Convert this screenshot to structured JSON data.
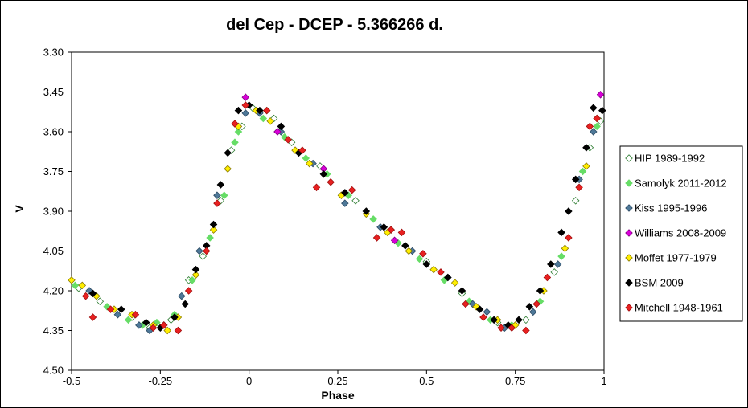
{
  "chart_data": {
    "type": "scatter",
    "title": "del Cep - DCEP - 5.366266 d.",
    "xlabel": "Phase",
    "ylabel": "V",
    "xlim": [
      -0.5,
      1.0
    ],
    "ylim": [
      4.5,
      3.3
    ],
    "y_inverted": true,
    "x_ticks": [
      "-0.5",
      "-0.25",
      "0",
      "0.25",
      "0.5",
      "0.75",
      "1"
    ],
    "y_ticks": [
      "3.30",
      "3.45",
      "3.60",
      "3.75",
      "3.90",
      "4.05",
      "4.20",
      "4.35",
      "4.50"
    ],
    "grid": false,
    "legend_position": "right",
    "series": [
      {
        "name": "HIP 1989-1992",
        "color": "#ffffff",
        "stroke": "#2e7d32",
        "points": [
          [
            -0.48,
            4.19
          ],
          [
            -0.42,
            4.24
          ],
          [
            -0.33,
            4.3
          ],
          [
            -0.28,
            4.34
          ],
          [
            -0.22,
            4.31
          ],
          [
            -0.17,
            4.16
          ],
          [
            -0.13,
            4.07
          ],
          [
            -0.08,
            3.86
          ],
          [
            -0.05,
            3.67
          ],
          [
            -0.02,
            3.58
          ],
          [
            0.01,
            3.51
          ],
          [
            0.05,
            3.52
          ],
          [
            0.07,
            3.55
          ],
          [
            0.12,
            3.64
          ],
          [
            0.2,
            3.73
          ],
          [
            0.3,
            3.86
          ],
          [
            0.4,
            3.97
          ],
          [
            0.5,
            4.09
          ],
          [
            0.6,
            4.21
          ],
          [
            0.7,
            4.32
          ],
          [
            0.78,
            4.31
          ],
          [
            0.86,
            4.13
          ],
          [
            0.92,
            3.86
          ],
          [
            0.96,
            3.66
          ],
          [
            0.99,
            3.56
          ]
        ]
      },
      {
        "name": "Samolyk 2011-2012",
        "color": "#66dd66",
        "stroke": "#66dd66",
        "points": [
          [
            -0.49,
            4.18
          ],
          [
            -0.4,
            4.26
          ],
          [
            -0.34,
            4.31
          ],
          [
            -0.3,
            4.33
          ],
          [
            -0.26,
            4.32
          ],
          [
            -0.21,
            4.29
          ],
          [
            -0.16,
            4.16
          ],
          [
            -0.11,
            4.0
          ],
          [
            -0.07,
            3.84
          ],
          [
            -0.04,
            3.64
          ],
          [
            -0.03,
            3.6
          ],
          [
            0.04,
            3.55
          ],
          [
            0.1,
            3.62
          ],
          [
            0.16,
            3.7
          ],
          [
            0.22,
            3.76
          ],
          [
            0.28,
            3.84
          ],
          [
            0.35,
            3.93
          ],
          [
            0.42,
            4.02
          ],
          [
            0.48,
            4.08
          ],
          [
            0.55,
            4.16
          ],
          [
            0.62,
            4.24
          ],
          [
            0.68,
            4.31
          ],
          [
            0.74,
            4.33
          ],
          [
            0.82,
            4.24
          ],
          [
            0.88,
            4.07
          ],
          [
            0.94,
            3.75
          ],
          [
            0.98,
            3.58
          ]
        ]
      },
      {
        "name": "Kiss 1995-1996",
        "color": "#4e7898",
        "stroke": "#2c4a63",
        "points": [
          [
            -0.45,
            4.2
          ],
          [
            -0.37,
            4.29
          ],
          [
            -0.31,
            4.33
          ],
          [
            -0.28,
            4.35
          ],
          [
            -0.24,
            4.33
          ],
          [
            -0.19,
            4.22
          ],
          [
            -0.14,
            4.05
          ],
          [
            -0.09,
            3.84
          ],
          [
            -0.01,
            3.53
          ],
          [
            0.03,
            3.53
          ],
          [
            0.09,
            3.6
          ],
          [
            0.18,
            3.72
          ],
          [
            0.27,
            3.87
          ],
          [
            0.37,
            3.96
          ],
          [
            0.46,
            4.05
          ],
          [
            0.56,
            4.15
          ],
          [
            0.63,
            4.25
          ],
          [
            0.67,
            4.28
          ],
          [
            0.72,
            4.34
          ],
          [
            0.8,
            4.28
          ],
          [
            0.87,
            4.1
          ],
          [
            0.93,
            3.78
          ],
          [
            0.97,
            3.6
          ]
        ]
      },
      {
        "name": "Williams 2008-2009",
        "color": "#d800d8",
        "stroke": "#800080",
        "points": [
          [
            -0.01,
            3.47
          ],
          [
            0.08,
            3.6
          ],
          [
            0.21,
            3.74
          ],
          [
            0.41,
            4.01
          ],
          [
            0.99,
            3.46
          ]
        ]
      },
      {
        "name": "Moffet 1977-1979",
        "color": "#ffee00",
        "stroke": "#8a7a00",
        "points": [
          [
            -0.5,
            4.16
          ],
          [
            -0.47,
            4.18
          ],
          [
            -0.43,
            4.22
          ],
          [
            -0.38,
            4.27
          ],
          [
            -0.33,
            4.29
          ],
          [
            -0.27,
            4.33
          ],
          [
            -0.23,
            4.35
          ],
          [
            -0.2,
            4.3
          ],
          [
            -0.15,
            4.14
          ],
          [
            -0.1,
            3.97
          ],
          [
            -0.06,
            3.74
          ],
          [
            -0.03,
            3.58
          ],
          [
            0.02,
            3.52
          ],
          [
            0.06,
            3.56
          ],
          [
            0.13,
            3.67
          ],
          [
            0.17,
            3.72
          ],
          [
            0.26,
            3.84
          ],
          [
            0.33,
            3.91
          ],
          [
            0.39,
            3.98
          ],
          [
            0.45,
            4.05
          ],
          [
            0.52,
            4.12
          ],
          [
            0.58,
            4.17
          ],
          [
            0.64,
            4.26
          ],
          [
            0.7,
            4.31
          ],
          [
            0.75,
            4.33
          ],
          [
            0.83,
            4.2
          ],
          [
            0.89,
            4.04
          ],
          [
            0.95,
            3.73
          ],
          [
            0.98,
            3.55
          ]
        ]
      },
      {
        "name": "BSM 2009",
        "color": "#000000",
        "stroke": "#000000",
        "points": [
          [
            -0.44,
            4.21
          ],
          [
            -0.36,
            4.27
          ],
          [
            -0.29,
            4.32
          ],
          [
            -0.25,
            4.34
          ],
          [
            -0.21,
            4.3
          ],
          [
            -0.18,
            4.25
          ],
          [
            -0.15,
            4.12
          ],
          [
            -0.12,
            4.03
          ],
          [
            -0.1,
            3.95
          ],
          [
            -0.08,
            3.8
          ],
          [
            -0.06,
            3.68
          ],
          [
            -0.03,
            3.52
          ],
          [
            0.0,
            3.5
          ],
          [
            0.03,
            3.52
          ],
          [
            0.09,
            3.58
          ],
          [
            0.14,
            3.68
          ],
          [
            0.21,
            3.76
          ],
          [
            0.27,
            3.83
          ],
          [
            0.33,
            3.9
          ],
          [
            0.38,
            3.96
          ],
          [
            0.44,
            4.03
          ],
          [
            0.5,
            4.1
          ],
          [
            0.56,
            4.15
          ],
          [
            0.6,
            4.2
          ],
          [
            0.65,
            4.27
          ],
          [
            0.69,
            4.31
          ],
          [
            0.73,
            4.33
          ],
          [
            0.76,
            4.31
          ],
          [
            0.79,
            4.26
          ],
          [
            0.82,
            4.2
          ],
          [
            0.85,
            4.1
          ],
          [
            0.88,
            3.98
          ],
          [
            0.9,
            3.9
          ],
          [
            0.92,
            3.78
          ],
          [
            0.95,
            3.66
          ],
          [
            0.97,
            3.51
          ],
          [
            0.995,
            3.52
          ]
        ]
      },
      {
        "name": "Mitchell 1948-1961",
        "color": "#e82020",
        "stroke": "#a01010",
        "points": [
          [
            -0.46,
            4.22
          ],
          [
            -0.44,
            4.3
          ],
          [
            -0.39,
            4.27
          ],
          [
            -0.32,
            4.29
          ],
          [
            -0.27,
            4.34
          ],
          [
            -0.24,
            4.33
          ],
          [
            -0.2,
            4.35
          ],
          [
            -0.17,
            4.2
          ],
          [
            -0.12,
            4.05
          ],
          [
            -0.09,
            3.87
          ],
          [
            -0.04,
            3.57
          ],
          [
            -0.01,
            3.5
          ],
          [
            0.05,
            3.52
          ],
          [
            0.11,
            3.63
          ],
          [
            0.15,
            3.67
          ],
          [
            0.19,
            3.81
          ],
          [
            0.23,
            3.79
          ],
          [
            0.29,
            3.82
          ],
          [
            0.36,
            4.0
          ],
          [
            0.4,
            3.97
          ],
          [
            0.43,
            3.98
          ],
          [
            0.49,
            4.06
          ],
          [
            0.54,
            4.13
          ],
          [
            0.61,
            4.25
          ],
          [
            0.66,
            4.3
          ],
          [
            0.71,
            4.34
          ],
          [
            0.74,
            4.34
          ],
          [
            0.78,
            4.35
          ],
          [
            0.81,
            4.25
          ],
          [
            0.84,
            4.15
          ],
          [
            0.9,
            4.0
          ],
          [
            0.93,
            3.81
          ],
          [
            0.96,
            3.58
          ],
          [
            0.98,
            3.55
          ]
        ]
      }
    ]
  }
}
